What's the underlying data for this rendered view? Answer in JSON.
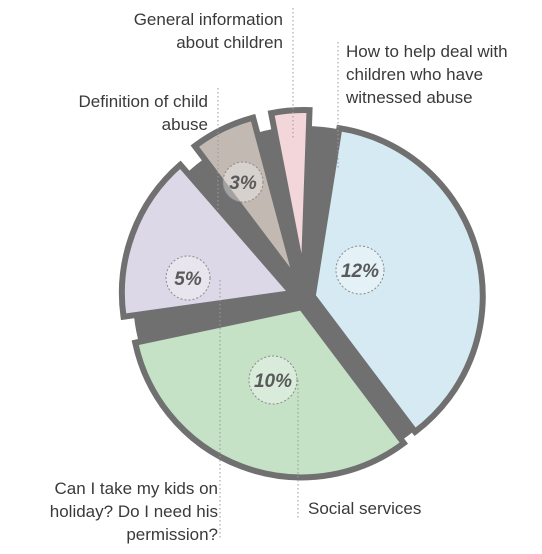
{
  "chart_data": {
    "type": "pie",
    "title": "",
    "slices": [
      {
        "label": "How to help deal with children who have witnessed abuse",
        "lines": [
          "How to help deal with",
          "children who have",
          "witnessed abuse"
        ],
        "value": 12,
        "display": "12%",
        "color": "#d6eaf3"
      },
      {
        "label": "Social services",
        "lines": [
          "Social services"
        ],
        "value": 10,
        "display": "10%",
        "color": "#c5e1c6"
      },
      {
        "label": "Can I take my kids on holiday? Do I need his permission?",
        "lines": [
          "Can I take my kids on",
          "holiday? Do I need his",
          "permission?"
        ],
        "value": 5,
        "display": "5%",
        "color": "#dcd8e7"
      },
      {
        "label": "Definition of child abuse",
        "lines": [
          "Definition of child",
          "abuse"
        ],
        "value": 3,
        "display": "3%",
        "color": "#c2b9b3"
      },
      {
        "label": "General information about children",
        "lines": [
          "General information",
          "about children"
        ],
        "value": 1,
        "display": "",
        "color": "#f2d6da"
      }
    ],
    "colors": {
      "border": "#707070",
      "leader": "#9a9a9a",
      "text": "#3a3a3a"
    }
  }
}
